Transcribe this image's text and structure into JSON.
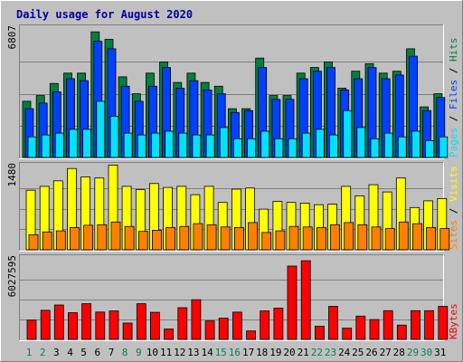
{
  "title": "Daily usage for August 2020",
  "colors": {
    "background": "#c0c0c0",
    "title": "#0000a0",
    "hits": "#008040",
    "files": "#0040ff",
    "pages": "#00e0ff",
    "visits": "#ffff00",
    "sites": "#ff8000",
    "kbytes": "#ff0000",
    "day_weekday": "#000000",
    "day_weekend": "#00805c"
  },
  "chart_data": [
    {
      "type": "bar",
      "panel": "hits-files-pages",
      "ymax_label": "6807",
      "ylim": [
        0,
        6807
      ],
      "legend": [
        "Pages",
        "Files",
        "Hits"
      ],
      "categories": [
        "1",
        "2",
        "3",
        "4",
        "5",
        "6",
        "7",
        "8",
        "9",
        "10",
        "11",
        "12",
        "13",
        "14",
        "15",
        "16",
        "17",
        "18",
        "19",
        "20",
        "21",
        "22",
        "23",
        "24",
        "25",
        "26",
        "27",
        "28",
        "29",
        "30",
        "31"
      ],
      "series": [
        {
          "name": "Hits",
          "color": "hits",
          "values": [
            3000,
            3300,
            3950,
            4500,
            4500,
            6700,
            6300,
            4300,
            3400,
            4500,
            5100,
            4000,
            4500,
            4000,
            3800,
            2600,
            2600,
            5300,
            3300,
            3300,
            4500,
            4800,
            5100,
            3700,
            4600,
            5000,
            4500,
            4600,
            5800,
            2700,
            3400
          ]
        },
        {
          "name": "Files",
          "color": "files",
          "values": [
            2600,
            2900,
            3500,
            4200,
            4100,
            6200,
            5800,
            3800,
            3000,
            3800,
            4800,
            3700,
            4100,
            3600,
            3400,
            2400,
            2500,
            4800,
            3100,
            3100,
            4200,
            4600,
            4800,
            3600,
            4200,
            4800,
            4200,
            4400,
            5400,
            2500,
            3200
          ]
        },
        {
          "name": "Pages",
          "color": "pages",
          "values": [
            1100,
            1200,
            1300,
            1500,
            1500,
            3000,
            2200,
            1300,
            1200,
            1300,
            1400,
            1300,
            1200,
            1200,
            1600,
            1000,
            1000,
            1400,
            1000,
            1000,
            1300,
            1500,
            1200,
            2500,
            1600,
            1000,
            1300,
            1100,
            1400,
            900,
            1100
          ]
        }
      ]
    },
    {
      "type": "bar",
      "panel": "visits-sites",
      "ymax_label": "1480",
      "ylim": [
        0,
        1480
      ],
      "legend": [
        "Sites",
        "Visits"
      ],
      "categories": [
        "1",
        "2",
        "3",
        "4",
        "5",
        "6",
        "7",
        "8",
        "9",
        "10",
        "11",
        "12",
        "13",
        "14",
        "15",
        "16",
        "17",
        "18",
        "19",
        "20",
        "21",
        "22",
        "23",
        "24",
        "25",
        "26",
        "27",
        "28",
        "29",
        "30",
        "31"
      ],
      "series": [
        {
          "name": "Visits",
          "color": "visits",
          "values": [
            1070,
            1140,
            1240,
            1460,
            1310,
            1290,
            1520,
            1140,
            1080,
            1190,
            1120,
            1140,
            990,
            1140,
            850,
            1090,
            1110,
            730,
            870,
            850,
            840,
            810,
            820,
            1140,
            970,
            1170,
            1040,
            1290,
            760,
            880,
            920
          ]
        },
        {
          "name": "Sites",
          "color": "sites",
          "values": [
            270,
            320,
            340,
            400,
            440,
            450,
            500,
            420,
            330,
            350,
            400,
            420,
            470,
            450,
            410,
            400,
            490,
            310,
            340,
            420,
            410,
            400,
            450,
            490,
            450,
            410,
            380,
            500,
            470,
            400,
            380
          ]
        }
      ]
    },
    {
      "type": "bar",
      "panel": "kbytes",
      "ymax_label": "6027595",
      "ylim": [
        0,
        6027595
      ],
      "legend": [
        "KBytes"
      ],
      "categories": [
        "1",
        "2",
        "3",
        "4",
        "5",
        "6",
        "7",
        "8",
        "9",
        "10",
        "11",
        "12",
        "13",
        "14",
        "15",
        "16",
        "17",
        "18",
        "19",
        "20",
        "21",
        "22",
        "23",
        "24",
        "25",
        "26",
        "27",
        "28",
        "29",
        "30",
        "31"
      ],
      "series": [
        {
          "name": "KBytes",
          "color": "kbytes",
          "values": [
            1450000,
            2200000,
            2600000,
            2020000,
            2700000,
            2070000,
            2150000,
            1230000,
            2700000,
            2050000,
            790000,
            2400000,
            3000000,
            1400000,
            1600000,
            2060000,
            640000,
            2150000,
            2370000,
            5550000,
            5950000,
            1000000,
            2500000,
            850000,
            1760000,
            1500000,
            2170000,
            1080000,
            2170000,
            2170000,
            2500000
          ]
        }
      ]
    }
  ],
  "days": [
    {
      "label": "1",
      "weekend": true
    },
    {
      "label": "2",
      "weekend": true
    },
    {
      "label": "3",
      "weekend": false
    },
    {
      "label": "4",
      "weekend": false
    },
    {
      "label": "5",
      "weekend": false
    },
    {
      "label": "6",
      "weekend": false
    },
    {
      "label": "7",
      "weekend": false
    },
    {
      "label": "8",
      "weekend": true
    },
    {
      "label": "9",
      "weekend": true
    },
    {
      "label": "10",
      "weekend": false
    },
    {
      "label": "11",
      "weekend": false
    },
    {
      "label": "12",
      "weekend": false
    },
    {
      "label": "13",
      "weekend": false
    },
    {
      "label": "14",
      "weekend": false
    },
    {
      "label": "15",
      "weekend": true
    },
    {
      "label": "16",
      "weekend": true
    },
    {
      "label": "17",
      "weekend": false
    },
    {
      "label": "18",
      "weekend": false
    },
    {
      "label": "19",
      "weekend": false
    },
    {
      "label": "20",
      "weekend": false
    },
    {
      "label": "21",
      "weekend": false
    },
    {
      "label": "22",
      "weekend": true
    },
    {
      "label": "23",
      "weekend": true
    },
    {
      "label": "24",
      "weekend": false
    },
    {
      "label": "25",
      "weekend": false
    },
    {
      "label": "26",
      "weekend": false
    },
    {
      "label": "27",
      "weekend": false
    },
    {
      "label": "28",
      "weekend": false
    },
    {
      "label": "29",
      "weekend": true
    },
    {
      "label": "30",
      "weekend": true
    },
    {
      "label": "31",
      "weekend": false
    }
  ]
}
